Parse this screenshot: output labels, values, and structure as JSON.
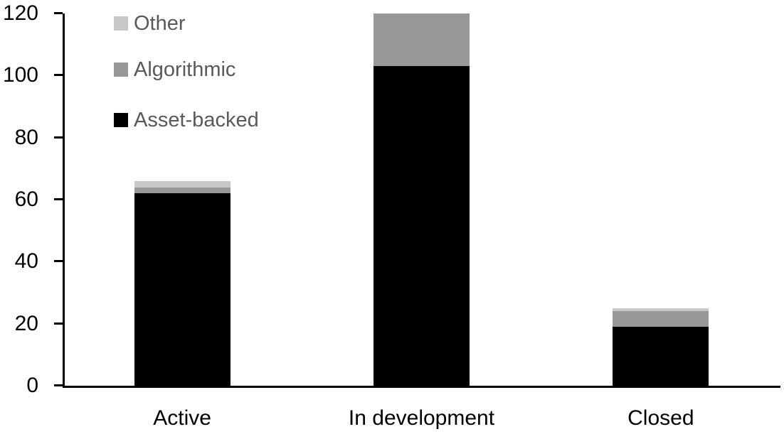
{
  "chart_data": {
    "type": "bar",
    "stacked": true,
    "title": "",
    "categories": [
      "Active",
      "In development",
      "Closed"
    ],
    "series": [
      {
        "name": "Asset-backed",
        "color": "#000000",
        "values": [
          62,
          103,
          19
        ]
      },
      {
        "name": "Algorithmic",
        "color": "#989898",
        "values": [
          2,
          17,
          5
        ]
      },
      {
        "name": "Other",
        "color": "#c8c8c8",
        "values": [
          2,
          0,
          1
        ]
      }
    ],
    "category_totals": [
      66,
      120,
      25
    ],
    "y_axis": {
      "min": 0,
      "max": 120,
      "tick_interval": 20,
      "tick_labels": [
        "0",
        "20",
        "40",
        "60",
        "80",
        "100",
        "120"
      ],
      "label_color": "#000000"
    },
    "x_axis": {
      "label_color": "#000000"
    },
    "legend": {
      "position": "top-left",
      "order": [
        "Other",
        "Algorithmic",
        "Asset-backed"
      ],
      "text_color": "#595959"
    },
    "grid": false,
    "background": "#ffffff",
    "axis_color": "#000000"
  }
}
